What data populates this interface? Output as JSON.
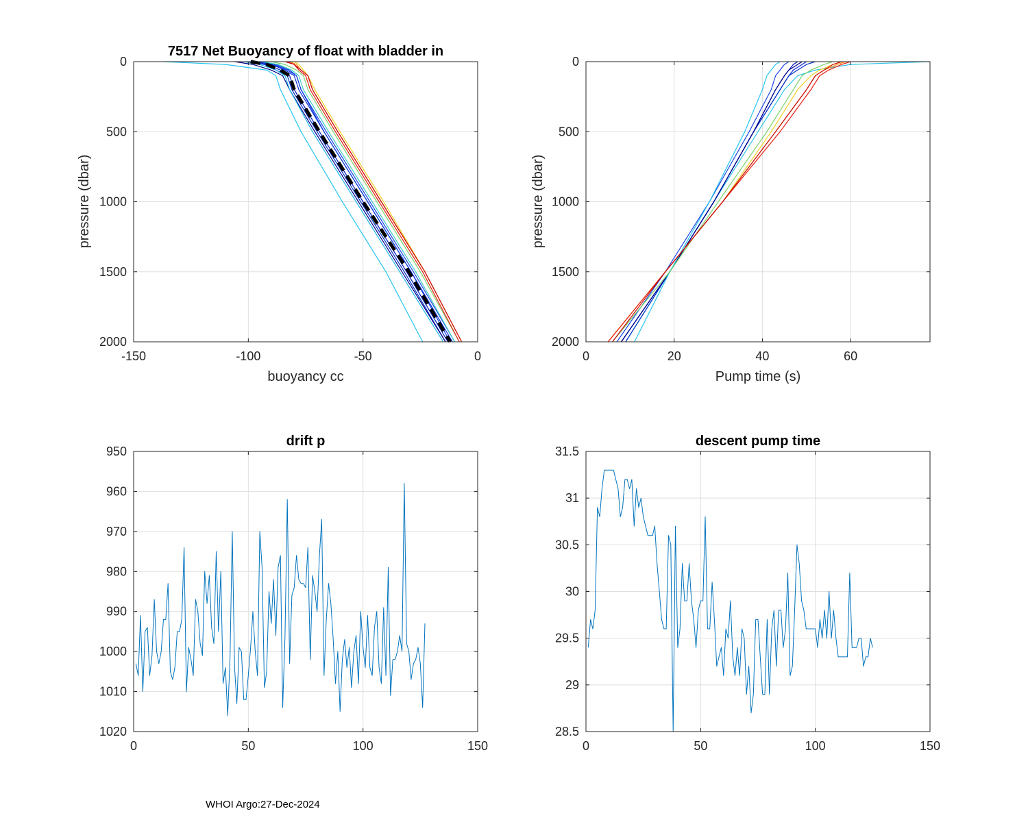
{
  "footer": "WHOI Argo:27-Dec-2024",
  "chart_data": [
    {
      "id": "buoyancy",
      "type": "line",
      "title": "7517 Net Buoyancy of float with bladder in",
      "xlabel": "buoyancy cc",
      "ylabel": "pressure (dbar)",
      "xlim": [
        -150,
        0
      ],
      "ylim": [
        0,
        2000
      ],
      "y_reversed": true,
      "xticks": [
        -150,
        -100,
        -50,
        0
      ],
      "yticks": [
        0,
        500,
        1000,
        1500,
        2000
      ],
      "grid": true,
      "profile_pressures": [
        0,
        20,
        60,
        100,
        200,
        500,
        1000,
        1500,
        2000
      ],
      "series": [
        {
          "name": "profile-blue-1",
          "color": "#0a2ad8",
          "values": [
            -97,
            -90,
            -84,
            -80,
            -78,
            -67,
            -48,
            -29,
            -11
          ]
        },
        {
          "name": "profile-blue-2",
          "color": "#0018b4",
          "values": [
            -99,
            -92,
            -86,
            -82,
            -80,
            -69,
            -50,
            -31,
            -13
          ]
        },
        {
          "name": "profile-blue-3",
          "color": "#1a46e8",
          "values": [
            -95,
            -88,
            -82,
            -79,
            -77,
            -66,
            -47,
            -28,
            -10
          ]
        },
        {
          "name": "profile-blue-4",
          "color": "#0030c8",
          "values": [
            -100,
            -93,
            -88,
            -83,
            -81,
            -70,
            -51,
            -32,
            -14
          ]
        },
        {
          "name": "profile-blue-5",
          "color": "#0b3be0",
          "values": [
            -96,
            -89,
            -83,
            -79,
            -77,
            -67,
            -48,
            -29,
            -12
          ]
        },
        {
          "name": "profile-navy",
          "color": "#00008a",
          "values": [
            -106,
            -98,
            -90,
            -85,
            -82,
            -71,
            -52,
            -33,
            -14
          ]
        },
        {
          "name": "profile-cyan-1",
          "color": "#1ab7e8",
          "values": [
            -102,
            -95,
            -88,
            -84,
            -82,
            -72,
            -53,
            -34,
            -15
          ]
        },
        {
          "name": "profile-cyan-2",
          "color": "#22c4f0",
          "values": [
            -137,
            -110,
            -92,
            -88,
            -86,
            -77,
            -59,
            -40,
            -24
          ]
        },
        {
          "name": "profile-teal",
          "color": "#3ccfc0",
          "values": [
            -94,
            -87,
            -81,
            -78,
            -76,
            -65,
            -46,
            -27,
            -10
          ]
        },
        {
          "name": "profile-green",
          "color": "#78d26a",
          "values": [
            -90,
            -84,
            -79,
            -76,
            -74,
            -63,
            -44,
            -25,
            -8
          ]
        },
        {
          "name": "profile-yellow",
          "color": "#f0d020",
          "values": [
            -80,
            -78,
            -76,
            -74,
            -71,
            -60,
            -41,
            -23,
            -7
          ]
        },
        {
          "name": "profile-orange",
          "color": "#ff8a10",
          "values": [
            -82,
            -79,
            -77,
            -74,
            -72,
            -61,
            -42,
            -23,
            -7
          ]
        },
        {
          "name": "profile-red-1",
          "color": "#e81c10",
          "values": [
            -84,
            -80,
            -78,
            -75,
            -73,
            -62,
            -43,
            -24,
            -8
          ]
        },
        {
          "name": "profile-red-2",
          "color": "#c80808",
          "values": [
            -83,
            -80,
            -77,
            -74,
            -72,
            -61,
            -42,
            -23,
            -7
          ]
        },
        {
          "name": "mean",
          "color": "#000000",
          "dashed": true,
          "values": [
            -99,
            -92,
            -86,
            -82,
            -80,
            -69,
            -50,
            -30,
            -12
          ]
        }
      ]
    },
    {
      "id": "pumptime",
      "type": "line",
      "title": "",
      "xlabel": "Pump time (s)",
      "ylabel": "pressure (dbar)",
      "xlim": [
        0,
        78
      ],
      "ylim": [
        0,
        2000
      ],
      "y_reversed": true,
      "xticks": [
        0,
        20,
        40,
        60
      ],
      "yticks": [
        0,
        500,
        1000,
        1500,
        2000
      ],
      "grid": true,
      "profile_pressures": [
        0,
        20,
        60,
        100,
        200,
        500,
        1000,
        1500,
        2000
      ],
      "series": [
        {
          "name": "surface-line",
          "color": "#2bc3e8",
          "values": [
            78,
            60,
            52,
            48,
            45,
            39,
            29,
            19,
            9
          ]
        },
        {
          "name": "profile-blue-1",
          "color": "#0018b4",
          "values": [
            48,
            47,
            46,
            45,
            43,
            38,
            29,
            19,
            8
          ]
        },
        {
          "name": "profile-blue-2",
          "color": "#0a2ad8",
          "values": [
            50,
            49,
            47,
            46,
            44,
            38,
            29,
            19,
            8
          ]
        },
        {
          "name": "profile-blue-3",
          "color": "#1a46e8",
          "values": [
            46,
            45,
            44,
            43,
            42,
            37,
            28,
            18,
            7
          ]
        },
        {
          "name": "profile-blue-4",
          "color": "#0030c8",
          "values": [
            52,
            50,
            48,
            46,
            44,
            38,
            29,
            19,
            9
          ]
        },
        {
          "name": "profile-navy",
          "color": "#00008a",
          "values": [
            49,
            48,
            46,
            45,
            43,
            38,
            29,
            19,
            8
          ]
        },
        {
          "name": "profile-cyan",
          "color": "#22c4f0",
          "values": [
            44,
            43,
            42,
            41,
            40,
            36,
            28,
            19,
            11
          ]
        },
        {
          "name": "profile-green",
          "color": "#78d26a",
          "values": [
            56,
            54,
            51,
            49,
            47,
            41,
            30,
            19,
            6
          ]
        },
        {
          "name": "profile-yellow",
          "color": "#f0d020",
          "values": [
            58,
            56,
            53,
            51,
            48,
            42,
            31,
            18,
            5
          ]
        },
        {
          "name": "profile-orange",
          "color": "#ff8a10",
          "values": [
            59,
            57,
            54,
            52,
            50,
            43,
            31,
            18,
            5
          ]
        },
        {
          "name": "profile-red-1",
          "color": "#e81c10",
          "values": [
            60,
            58,
            55,
            53,
            51,
            44,
            31,
            18,
            5
          ]
        },
        {
          "name": "profile-red-2",
          "color": "#c80808",
          "values": [
            58,
            56,
            54,
            52,
            50,
            43,
            31,
            18,
            6
          ]
        }
      ]
    },
    {
      "id": "driftp",
      "type": "line",
      "title": "drift p",
      "xlabel": "",
      "ylabel": "",
      "xlim": [
        0,
        150
      ],
      "ylim": [
        950,
        1020
      ],
      "y_reversed": true,
      "xticks": [
        0,
        50,
        100,
        150
      ],
      "yticks": [
        950,
        960,
        970,
        980,
        990,
        1000,
        1010,
        1020
      ],
      "grid": true,
      "color": "#0072bd",
      "x_start": 1,
      "values": [
        1003,
        1006,
        991,
        1010,
        995,
        994,
        1006,
        1001,
        987,
        1000,
        1003,
        1000,
        992,
        992,
        983,
        1005,
        1007,
        1004,
        995,
        995,
        992,
        974,
        1010,
        999,
        1002,
        1006,
        987,
        990,
        998,
        1001,
        980,
        988,
        981,
        994,
        998,
        975,
        995,
        980,
        1008,
        1004,
        1016,
        1002,
        970,
        1004,
        1013,
        999,
        1000,
        1012,
        1012,
        1006,
        999,
        990,
        1000,
        1006,
        970,
        979,
        1009,
        1005,
        985,
        993,
        982,
        996,
        979,
        976,
        1014,
        996,
        962,
        1003,
        986,
        984,
        976,
        982,
        983,
        983,
        984,
        974,
        1002,
        981,
        985,
        990,
        976,
        967,
        1006,
        992,
        983,
        988,
        997,
        1008,
        1000,
        1015,
        1002,
        997,
        1004,
        999,
        1009,
        1000,
        996,
        1008,
        990,
        999,
        1004,
        991,
        1004,
        1006,
        994,
        990,
        1004,
        1008,
        989,
        1006,
        979,
        1011,
        1002,
        1002,
        1000,
        996,
        1000,
        958,
        998,
        1000,
        1007,
        1003,
        1002,
        999,
        1003,
        1014,
        993
      ]
    },
    {
      "id": "descentpump",
      "type": "line",
      "title": "descent pump time",
      "xlabel": "",
      "ylabel": "",
      "xlim": [
        0,
        150
      ],
      "ylim": [
        28.5,
        31.5
      ],
      "y_reversed": false,
      "xticks": [
        0,
        50,
        100,
        150
      ],
      "yticks": [
        28.5,
        29,
        29.5,
        30,
        30.5,
        31,
        31.5
      ],
      "grid": true,
      "color": "#0072bd",
      "x_start": 1,
      "values": [
        29.4,
        29.7,
        29.6,
        29.8,
        30.9,
        30.8,
        31.1,
        31.3,
        31.3,
        31.3,
        31.3,
        31.3,
        31.2,
        31.1,
        30.8,
        30.9,
        31.2,
        31.2,
        31.1,
        31.2,
        30.7,
        31.1,
        30.9,
        31.0,
        30.8,
        30.7,
        30.6,
        30.6,
        30.6,
        30.7,
        30.3,
        30.0,
        29.7,
        29.6,
        29.6,
        30.6,
        30.5,
        28.5,
        30.7,
        29.4,
        29.6,
        30.3,
        29.9,
        29.9,
        30.3,
        29.9,
        29.7,
        29.4,
        29.8,
        29.9,
        29.9,
        30.8,
        29.6,
        29.6,
        30.1,
        29.7,
        29.2,
        29.3,
        29.4,
        29.1,
        29.6,
        29.5,
        29.9,
        29.3,
        29.1,
        29.4,
        29.1,
        29.6,
        29.5,
        28.9,
        29.2,
        28.7,
        28.9,
        29.7,
        29.7,
        29.3,
        28.9,
        28.9,
        29.7,
        28.9,
        29.6,
        29.8,
        29.2,
        29.8,
        29.8,
        29.4,
        29.6,
        30.2,
        29.1,
        29.2,
        29.8,
        30.5,
        30.3,
        29.9,
        29.8,
        29.6,
        29.6,
        29.6,
        29.6,
        29.6,
        29.4,
        29.7,
        29.5,
        29.8,
        29.5,
        30.0,
        29.5,
        29.8,
        29.5,
        29.3,
        29.3,
        29.3,
        29.3,
        29.3,
        30.2,
        29.4,
        29.4,
        29.4,
        29.5,
        29.5,
        29.2,
        29.3,
        29.3,
        29.5,
        29.4
      ]
    }
  ]
}
